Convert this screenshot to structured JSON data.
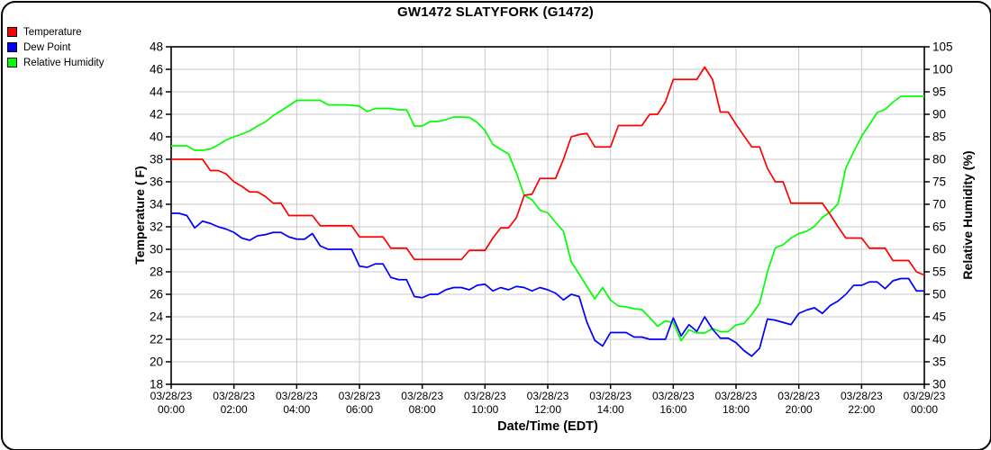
{
  "window": {
    "background": "#ffffff",
    "border_color": "#000000",
    "grid_color": "#c9c9c9"
  },
  "chart_data": {
    "type": "line",
    "title": "GW1472 SLATYFORK (G1472)",
    "xlabel": "Date/Time (EDT)",
    "ylabel_left": "Temperature ( F)",
    "ylabel_right": "Relative Humidity (%)",
    "grid": true,
    "legend_position": "top-left",
    "x_start_hours": 0,
    "x_step_hours": 0.25,
    "x_total_hours": 24,
    "x_tick_interval_hours": 2,
    "x_tick_labels": [
      {
        "date": "03/28/23",
        "time": "00:00"
      },
      {
        "date": "03/28/23",
        "time": "02:00"
      },
      {
        "date": "03/28/23",
        "time": "04:00"
      },
      {
        "date": "03/28/23",
        "time": "06:00"
      },
      {
        "date": "03/28/23",
        "time": "08:00"
      },
      {
        "date": "03/28/23",
        "time": "10:00"
      },
      {
        "date": "03/28/23",
        "time": "12:00"
      },
      {
        "date": "03/28/23",
        "time": "14:00"
      },
      {
        "date": "03/28/23",
        "time": "16:00"
      },
      {
        "date": "03/28/23",
        "time": "18:00"
      },
      {
        "date": "03/28/23",
        "time": "20:00"
      },
      {
        "date": "03/28/23",
        "time": "22:00"
      },
      {
        "date": "03/29/23",
        "time": "00:00"
      }
    ],
    "y_left": {
      "min": 18,
      "max": 48,
      "tick_step": 2
    },
    "y_right": {
      "min": 30,
      "max": 105,
      "tick_step": 5
    },
    "series": [
      {
        "name": "Temperature",
        "color": "#ff0000",
        "axis": "left",
        "values": [
          38.0,
          38.0,
          38.0,
          38.0,
          38.0,
          37.0,
          37.0,
          36.7,
          36.0,
          35.6,
          35.1,
          35.1,
          34.7,
          34.1,
          34.1,
          33.0,
          33.0,
          33.0,
          33.0,
          32.1,
          32.1,
          32.1,
          32.1,
          32.1,
          31.1,
          31.1,
          31.1,
          31.1,
          30.1,
          30.1,
          30.1,
          29.1,
          29.1,
          29.1,
          29.1,
          29.1,
          29.1,
          29.1,
          29.9,
          29.9,
          29.9,
          31.0,
          31.9,
          31.9,
          32.8,
          34.8,
          34.9,
          36.3,
          36.3,
          36.3,
          38.0,
          40.0,
          40.2,
          40.3,
          39.1,
          39.1,
          39.1,
          41.0,
          41.0,
          41.0,
          41.0,
          42.0,
          42.0,
          43.1,
          45.1,
          45.1,
          45.1,
          45.1,
          46.2,
          45.1,
          42.2,
          42.2,
          41.1,
          40.1,
          39.1,
          39.1,
          37.2,
          36.0,
          36.0,
          34.1,
          34.1,
          34.1,
          34.1,
          34.1,
          33.1,
          32.0,
          31.0,
          31.0,
          31.0,
          30.1,
          30.1,
          30.1,
          29.0,
          29.0,
          29.0,
          28.0,
          27.7
        ]
      },
      {
        "name": "Dew Point",
        "color": "#0000ff",
        "axis": "left",
        "values": [
          33.2,
          33.2,
          33.0,
          31.9,
          32.5,
          32.3,
          32.0,
          31.8,
          31.5,
          31.0,
          30.8,
          31.2,
          31.3,
          31.5,
          31.5,
          31.1,
          30.9,
          30.9,
          31.4,
          30.3,
          30.0,
          30.0,
          30.0,
          30.0,
          28.5,
          28.4,
          28.7,
          28.7,
          27.5,
          27.3,
          27.3,
          25.8,
          25.7,
          26.0,
          26.0,
          26.4,
          26.6,
          26.6,
          26.4,
          26.8,
          26.9,
          26.3,
          26.6,
          26.4,
          26.7,
          26.6,
          26.3,
          26.6,
          26.4,
          26.1,
          25.5,
          26.0,
          25.8,
          23.5,
          21.9,
          21.4,
          22.6,
          22.6,
          22.6,
          22.2,
          22.2,
          22.0,
          22.0,
          22.0,
          23.9,
          22.3,
          23.3,
          22.7,
          24.0,
          22.9,
          22.1,
          22.1,
          21.7,
          21.0,
          20.5,
          21.2,
          23.8,
          23.7,
          23.5,
          23.3,
          24.3,
          24.6,
          24.8,
          24.3,
          25.0,
          25.4,
          26.0,
          26.8,
          26.8,
          27.1,
          27.1,
          26.5,
          27.2,
          27.4,
          27.4,
          26.3,
          26.3
        ]
      },
      {
        "name": "Relative Humidity",
        "color": "#00ff00",
        "axis": "right",
        "values": [
          83.0,
          83.0,
          83.0,
          82.0,
          82.0,
          82.3,
          83.2,
          84.3,
          85.0,
          85.6,
          86.3,
          87.4,
          88.3,
          89.7,
          90.8,
          91.9,
          93.1,
          93.1,
          93.1,
          93.1,
          92.1,
          92.1,
          92.1,
          92.0,
          91.8,
          90.6,
          91.3,
          91.3,
          91.3,
          91.0,
          91.0,
          87.4,
          87.4,
          88.4,
          88.4,
          88.8,
          89.4,
          89.4,
          89.3,
          88.2,
          86.4,
          83.3,
          82.2,
          81.2,
          77.0,
          72.0,
          71.0,
          68.7,
          68.1,
          66.0,
          64.0,
          57.2,
          54.5,
          51.7,
          49.0,
          51.5,
          48.7,
          47.4,
          47.2,
          46.8,
          46.6,
          44.8,
          42.9,
          44.1,
          43.7,
          39.7,
          42.1,
          41.4,
          41.4,
          42.4,
          41.7,
          41.7,
          43.2,
          43.5,
          45.5,
          48.0,
          55.0,
          60.3,
          61.0,
          62.5,
          63.5,
          64.0,
          65.1,
          67.1,
          68.3,
          70.1,
          78.1,
          81.7,
          85.1,
          87.7,
          90.4,
          91.1,
          92.7,
          94.0,
          94.0,
          94.0,
          94.0
        ]
      }
    ]
  }
}
